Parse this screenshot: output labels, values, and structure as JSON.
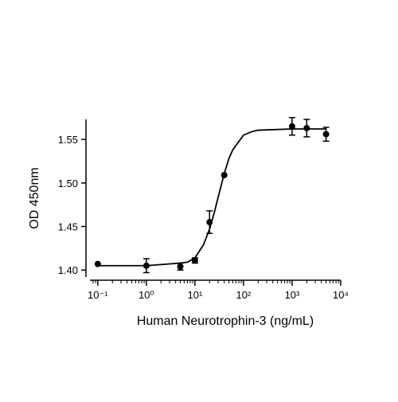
{
  "chart_data": {
    "type": "scatter",
    "x_label": "Human Neurotrophin-3 (ng/mL)",
    "y_label": "OD 450nm",
    "xscale": "log",
    "xlim": [
      0.069,
      10000
    ],
    "ylim": [
      1.392,
      1.573
    ],
    "xticks": [
      {
        "value": 0.1,
        "label": "10⁻¹"
      },
      {
        "value": 1,
        "label": "10⁰"
      },
      {
        "value": 10,
        "label": "10¹"
      },
      {
        "value": 100,
        "label": "10²"
      },
      {
        "value": 1000,
        "label": "10³"
      },
      {
        "value": 10000,
        "label": "10⁴"
      }
    ],
    "xminorticks": [
      0.08,
      0.09,
      0.2,
      0.3,
      0.4,
      0.5,
      0.6,
      0.7,
      0.8,
      0.9,
      2,
      3,
      4,
      5,
      6,
      7,
      8,
      9,
      20,
      30,
      40,
      50,
      60,
      70,
      80,
      90,
      200,
      300,
      400,
      500,
      600,
      700,
      800,
      900,
      2000,
      3000,
      4000,
      5000,
      6000,
      7000,
      8000,
      9000
    ],
    "yticks": [
      {
        "value": 1.4,
        "label": "1.40"
      },
      1.45,
      {
        "value": 1.5,
        "label": "1.50"
      },
      1.55
    ],
    "color": "#000000",
    "points": {
      "x": [
        0.1,
        1,
        5,
        10,
        20,
        40,
        1000,
        2000,
        5000
      ],
      "values": [
        1.407,
        1.405,
        1.404,
        1.411,
        1.455,
        1.509,
        1.565,
        1.563,
        1.556
      ],
      "errors": [
        null,
        0.008,
        0.004,
        0.003,
        0.013,
        null,
        0.01,
        0.01,
        0.008
      ]
    },
    "curve": {
      "x": [
        0.1,
        1,
        5,
        7,
        10,
        15,
        20,
        25,
        30,
        40,
        50,
        60,
        100,
        150,
        200,
        1000,
        5000
      ],
      "values": [
        1.405,
        1.405,
        1.408,
        1.409,
        1.414,
        1.429,
        1.447,
        1.466,
        1.4835,
        1.5105,
        1.528,
        1.538,
        1.555,
        1.559,
        1.5606,
        1.562,
        1.562
      ]
    }
  }
}
